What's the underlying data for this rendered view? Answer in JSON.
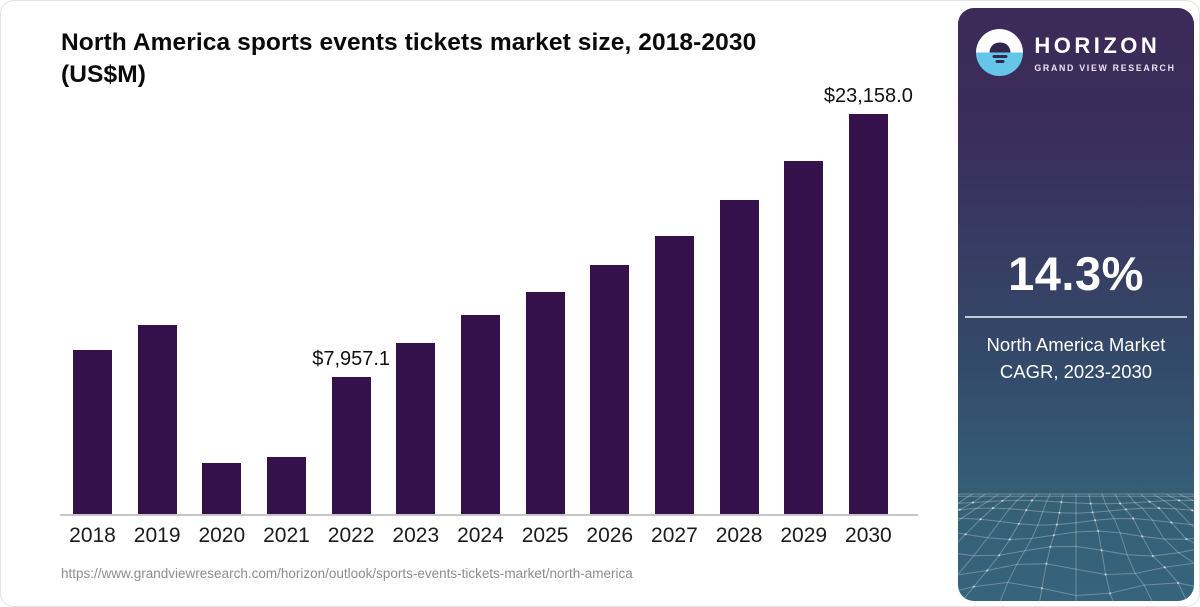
{
  "header": {
    "title_line1": "North America sports events tickets market size, 2018-2030",
    "title_line2": "(US$M)"
  },
  "footer": {
    "source_url": "https://www.grandviewresearch.com/horizon/outlook/sports-events-tickets-market/north-america"
  },
  "sidebar": {
    "brand": {
      "name": "HORIZON",
      "subtitle": "GRAND VIEW RESEARCH",
      "logo_icon": "horizon-sun-over-water",
      "logo_water_color": "#66c6e9",
      "logo_sun_color": "#32254e"
    },
    "stat": {
      "value": "14.3%",
      "label_line1": "North America Market",
      "label_line2": "CAGR, 2023-2030"
    },
    "colors": {
      "gradient_top": "#3c2a58",
      "gradient_mid": "#334a6a",
      "gradient_bottom": "#36647c",
      "mesh_line": "rgba(255,255,255,0.28)",
      "mesh_dot": "rgba(255,255,255,0.55)"
    }
  },
  "chart_data": {
    "type": "bar",
    "title": "North America sports events tickets market size, 2018-2030 (US$M)",
    "categories": [
      "2018",
      "2019",
      "2020",
      "2021",
      "2022",
      "2023",
      "2024",
      "2025",
      "2026",
      "2027",
      "2028",
      "2029",
      "2030"
    ],
    "values": [
      9510,
      10940,
      2970,
      3280,
      7957.1,
      9900,
      11540,
      12870,
      14390,
      16110,
      18160,
      20450,
      23158.0
    ],
    "point_labels": [
      "",
      "",
      "",
      "",
      "$7,957.1",
      "",
      "",
      "",
      "",
      "",
      "",
      "",
      "$23,158.0"
    ],
    "xlabel": "",
    "ylabel": "US$M",
    "ylim": [
      0,
      23158
    ],
    "grid": false,
    "legend": false,
    "bar_color": "#35114b",
    "axis_line_color": "#c6c6c6"
  }
}
